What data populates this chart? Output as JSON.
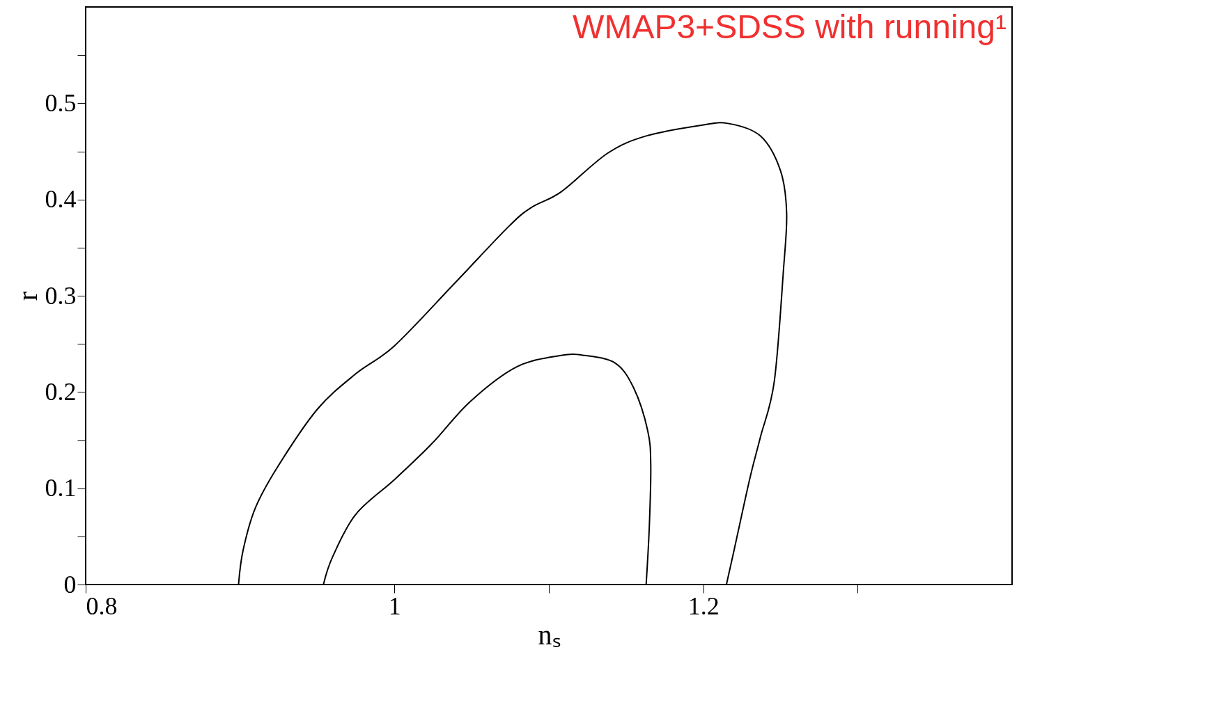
{
  "chart_data": {
    "type": "line",
    "title": "WMAP3+SDSS with running¹",
    "xlabel": "nₛ",
    "ylabel": "r",
    "xlim": [
      0.8,
      1.4
    ],
    "xticks": [
      0.8,
      1,
      {
        "value": 1.1,
        "label": null
      },
      1.2,
      {
        "value": 1.3,
        "label": null
      }
    ],
    "ylim": [
      0,
      0.6
    ],
    "yticks": [
      0,
      {
        "value": 0.05,
        "label": null
      },
      0.1,
      {
        "value": 0.15,
        "label": null
      },
      0.2,
      {
        "value": 0.25,
        "label": null
      },
      0.3,
      {
        "value": 0.35,
        "label": null
      },
      0.4,
      {
        "value": 0.45,
        "label": null
      },
      0.5,
      {
        "value": 0.55,
        "label": null
      }
    ],
    "grid": false,
    "legend": false,
    "marker": "none",
    "line_style": "solid",
    "series": [
      {
        "color": "#000000",
        "x": [
          0.899,
          0.902,
          0.91,
          0.925,
          0.95,
          0.975,
          1.0,
          1.039,
          1.074,
          1.089,
          1.108,
          1.138,
          1.163,
          1.198,
          1.216,
          1.237,
          1.25,
          1.254,
          1.252,
          1.246,
          1.237,
          1.23,
          1.22,
          1.215
        ],
        "values": [
          0,
          0.036,
          0.08,
          0.124,
          0.182,
          0.219,
          0.248,
          0.313,
          0.372,
          0.392,
          0.408,
          0.448,
          0.466,
          0.477,
          0.479,
          0.466,
          0.43,
          0.386,
          0.328,
          0.211,
          0.153,
          0.109,
          0.036,
          0
        ]
      },
      {
        "color": "#000000",
        "x": [
          0.954,
          0.96,
          0.975,
          1.0,
          1.024,
          1.049,
          1.079,
          1.108,
          1.123,
          1.143,
          1.155,
          1.164,
          1.166,
          1.165,
          1.163
        ],
        "values": [
          0,
          0.029,
          0.073,
          0.109,
          0.146,
          0.19,
          0.226,
          0.238,
          0.238,
          0.23,
          0.204,
          0.16,
          0.124,
          0.058,
          0
        ]
      }
    ]
  }
}
